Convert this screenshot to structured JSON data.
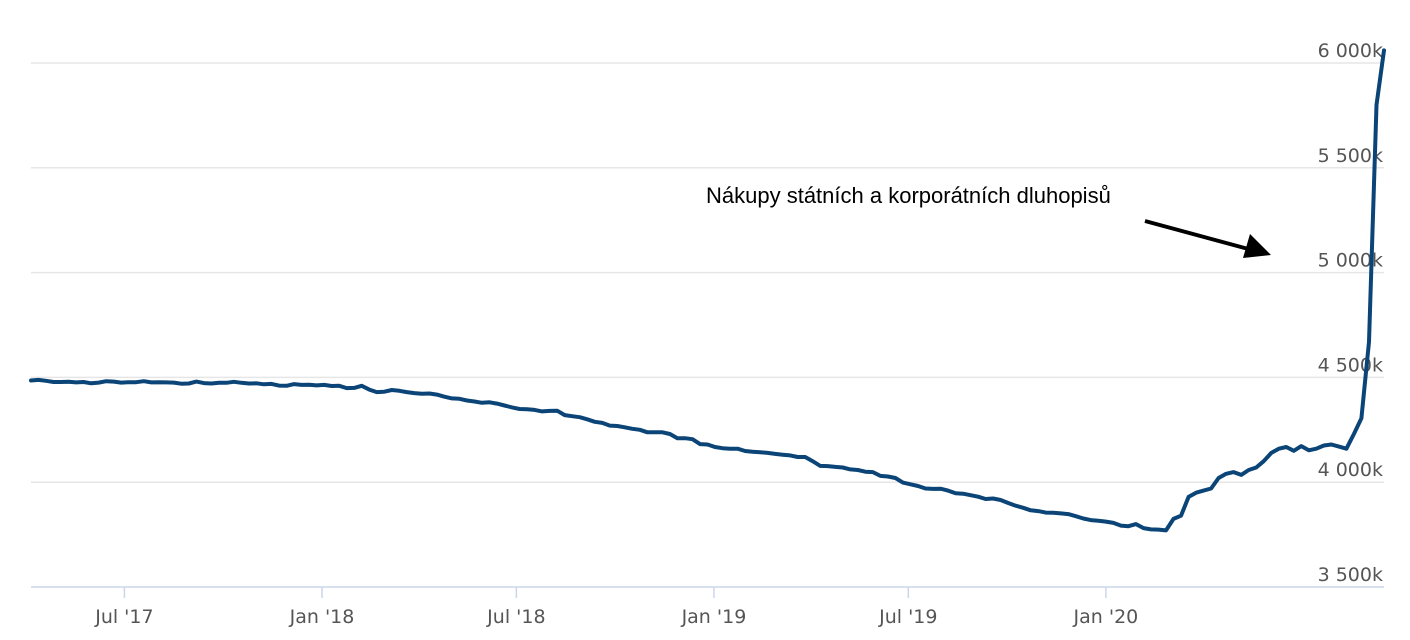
{
  "chart_data": {
    "type": "line",
    "title": "",
    "xlabel": "",
    "ylabel": "",
    "ylim": [
      3500,
      6000
    ],
    "x_ticks": [
      "Jul '17",
      "Jan '18",
      "Jul '18",
      "Jan '19",
      "Jul '19",
      "Jan '20"
    ],
    "y_ticks": [
      "3 500k",
      "4 000k",
      "4 500k",
      "5 000k",
      "5 500k",
      "6 000k"
    ],
    "y_tick_values": [
      3500,
      4000,
      4500,
      5000,
      5500,
      6000
    ],
    "grid": "horizontal",
    "legend": "none",
    "color": "#0b4477",
    "annotation": "Nákupy státních a korporátních dluhopisů",
    "series": [
      {
        "x_start": "2017-04-05",
        "interval_days": 7,
        "values": [
          4485,
          4488,
          4484,
          4478,
          4478,
          4479,
          4476,
          4478,
          4472,
          4475,
          4482,
          4480,
          4475,
          4477,
          4477,
          4482,
          4476,
          4477,
          4476,
          4475,
          4470,
          4471,
          4480,
          4473,
          4471,
          4474,
          4474,
          4479,
          4474,
          4471,
          4472,
          4467,
          4469,
          4461,
          4460,
          4468,
          4464,
          4465,
          4462,
          4464,
          4459,
          4460,
          4449,
          4450,
          4460,
          4442,
          4430,
          4432,
          4440,
          4436,
          4430,
          4425,
          4422,
          4423,
          4418,
          4408,
          4400,
          4398,
          4390,
          4385,
          4379,
          4381,
          4375,
          4366,
          4357,
          4349,
          4348,
          4345,
          4338,
          4340,
          4341,
          4320,
          4315,
          4310,
          4300,
          4288,
          4283,
          4270,
          4268,
          4262,
          4255,
          4250,
          4238,
          4238,
          4238,
          4230,
          4210,
          4210,
          4205,
          4182,
          4180,
          4168,
          4162,
          4160,
          4160,
          4149,
          4145,
          4143,
          4140,
          4135,
          4131,
          4128,
          4120,
          4120,
          4100,
          4078,
          4077,
          4073,
          4070,
          4061,
          4058,
          4050,
          4048,
          4030,
          4027,
          4020,
          3998,
          3990,
          3982,
          3970,
          3968,
          3969,
          3960,
          3947,
          3945,
          3938,
          3931,
          3920,
          3922,
          3915,
          3901,
          3888,
          3878,
          3866,
          3862,
          3855,
          3854,
          3851,
          3848,
          3838,
          3827,
          3819,
          3816,
          3812,
          3806,
          3793,
          3790,
          3800,
          3781,
          3775,
          3774,
          3770,
          3825,
          3840,
          3930,
          3950,
          3960,
          3970,
          4020,
          4040,
          4048,
          4035,
          4058,
          4070,
          4100,
          4140,
          4160,
          4168,
          4150,
          4172,
          4152,
          4160,
          4175,
          4180,
          4170,
          4160,
          4230,
          4305,
          4670,
          5800,
          6060
        ]
      }
    ]
  }
}
